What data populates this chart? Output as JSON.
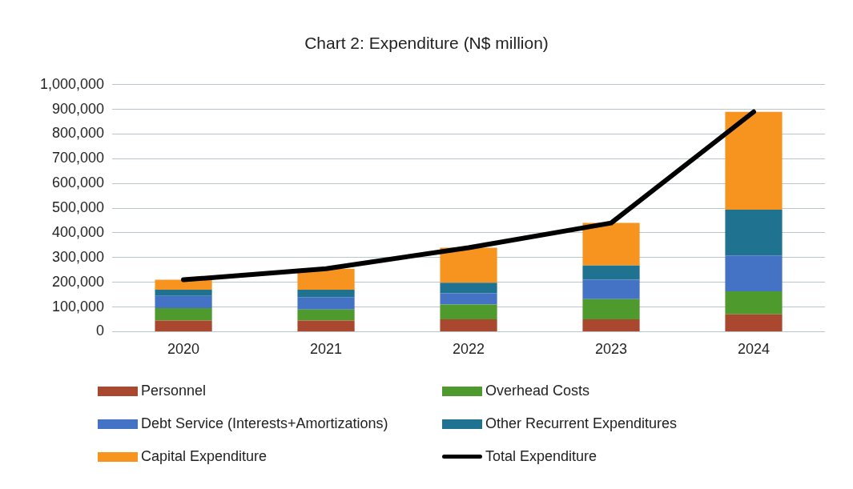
{
  "chart_data": {
    "type": "bar",
    "title": "Chart 2: Expenditure (N$ million)",
    "stacked": true,
    "categories": [
      "2020",
      "2021",
      "2022",
      "2023",
      "2024"
    ],
    "series": [
      {
        "name": "Personnel",
        "color": "#a9472f",
        "values": [
          45000,
          45000,
          50000,
          50000,
          70000
        ]
      },
      {
        "name": "Overhead Costs",
        "color": "#4e9a2c",
        "values": [
          50000,
          45000,
          60000,
          82000,
          93000
        ]
      },
      {
        "name": "Debt Service (Interests+Amortizations)",
        "color": "#4472c4",
        "values": [
          50000,
          50000,
          45000,
          78000,
          145000
        ]
      },
      {
        "name": "Other Recurrent Expenditures",
        "color": "#1f7391",
        "values": [
          25000,
          30000,
          43000,
          58000,
          186000
        ]
      },
      {
        "name": "Capital Expenditure",
        "color": "#f79420",
        "values": [
          40000,
          85000,
          142000,
          172000,
          396000
        ]
      },
      {
        "name": "Total Expenditure",
        "type": "line",
        "color": "#000000",
        "values": [
          210000,
          255000,
          340000,
          440000,
          890000
        ]
      }
    ],
    "ylim": [
      0,
      1000000
    ],
    "yticks": [
      0,
      {
        "value": 100000,
        "label": "100,000"
      },
      {
        "value": 200000,
        "label": "200,000"
      },
      {
        "value": 300000,
        "label": "300,000"
      },
      {
        "value": 400000,
        "label": "400,000"
      },
      {
        "value": 500000,
        "label": "500,000"
      },
      {
        "value": 600000,
        "label": "600,000"
      },
      {
        "value": 700000,
        "label": "700,000"
      },
      {
        "value": 800000,
        "label": "800,000"
      },
      {
        "value": 900000,
        "label": "900,000"
      },
      {
        "value": 1000000,
        "label": "1,000,000"
      }
    ],
    "grid": "y",
    "legend": "bottom",
    "marker": "none"
  }
}
